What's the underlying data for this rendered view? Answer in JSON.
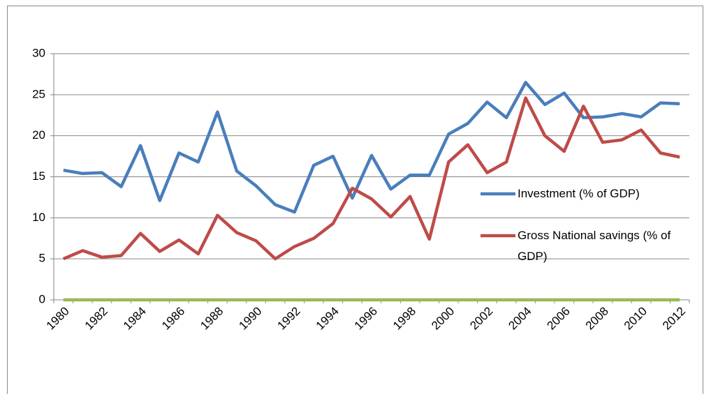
{
  "chart_data": {
    "type": "line",
    "categories": [
      "1980",
      null,
      "1982",
      null,
      "1984",
      null,
      "1986",
      null,
      "1988",
      null,
      "1990",
      null,
      "1992",
      null,
      "1994",
      null,
      "1996",
      null,
      "1998",
      null,
      "2000",
      null,
      "2002",
      null,
      "2004",
      null,
      "2006",
      null,
      "2008",
      null,
      "2010",
      null,
      "2012"
    ],
    "series": [
      {
        "name": "Investment (% of GDP)",
        "color": "#4a7ebb",
        "values": [
          15.8,
          15.4,
          15.5,
          13.8,
          18.8,
          12.1,
          17.9,
          16.8,
          22.9,
          15.7,
          13.9,
          11.6,
          10.7,
          16.4,
          17.5,
          12.4,
          17.6,
          13.5,
          15.2,
          15.2,
          20.2,
          21.5,
          24.1,
          22.2,
          26.5,
          23.8,
          25.2,
          22.2,
          22.3,
          22.7,
          22.3,
          24.0,
          23.9
        ]
      },
      {
        "name": "Gross National savings (% of GDP)",
        "color": "#be4b48",
        "values": [
          5.0,
          6.0,
          5.2,
          5.4,
          8.1,
          5.9,
          7.3,
          5.6,
          10.3,
          8.2,
          7.2,
          5.0,
          6.5,
          7.5,
          9.3,
          13.6,
          12.3,
          10.1,
          12.6,
          7.4,
          16.8,
          18.9,
          15.5,
          16.8,
          24.6,
          20.0,
          18.1,
          23.6,
          19.2,
          19.5,
          20.7,
          17.9,
          17.4
        ]
      },
      {
        "color": "#98b954",
        "values": [
          0,
          0,
          0,
          0,
          0,
          0,
          0,
          0,
          0,
          0,
          0,
          0,
          0,
          0,
          0,
          0,
          0,
          0,
          0,
          0,
          0,
          0,
          0,
          0,
          0,
          0,
          0,
          0,
          0,
          0,
          0,
          0,
          0
        ]
      }
    ],
    "ylim": [
      0,
      30
    ],
    "yticks": [
      0,
      5,
      10,
      15,
      20,
      25,
      30
    ],
    "grid": true,
    "legend": "right"
  }
}
